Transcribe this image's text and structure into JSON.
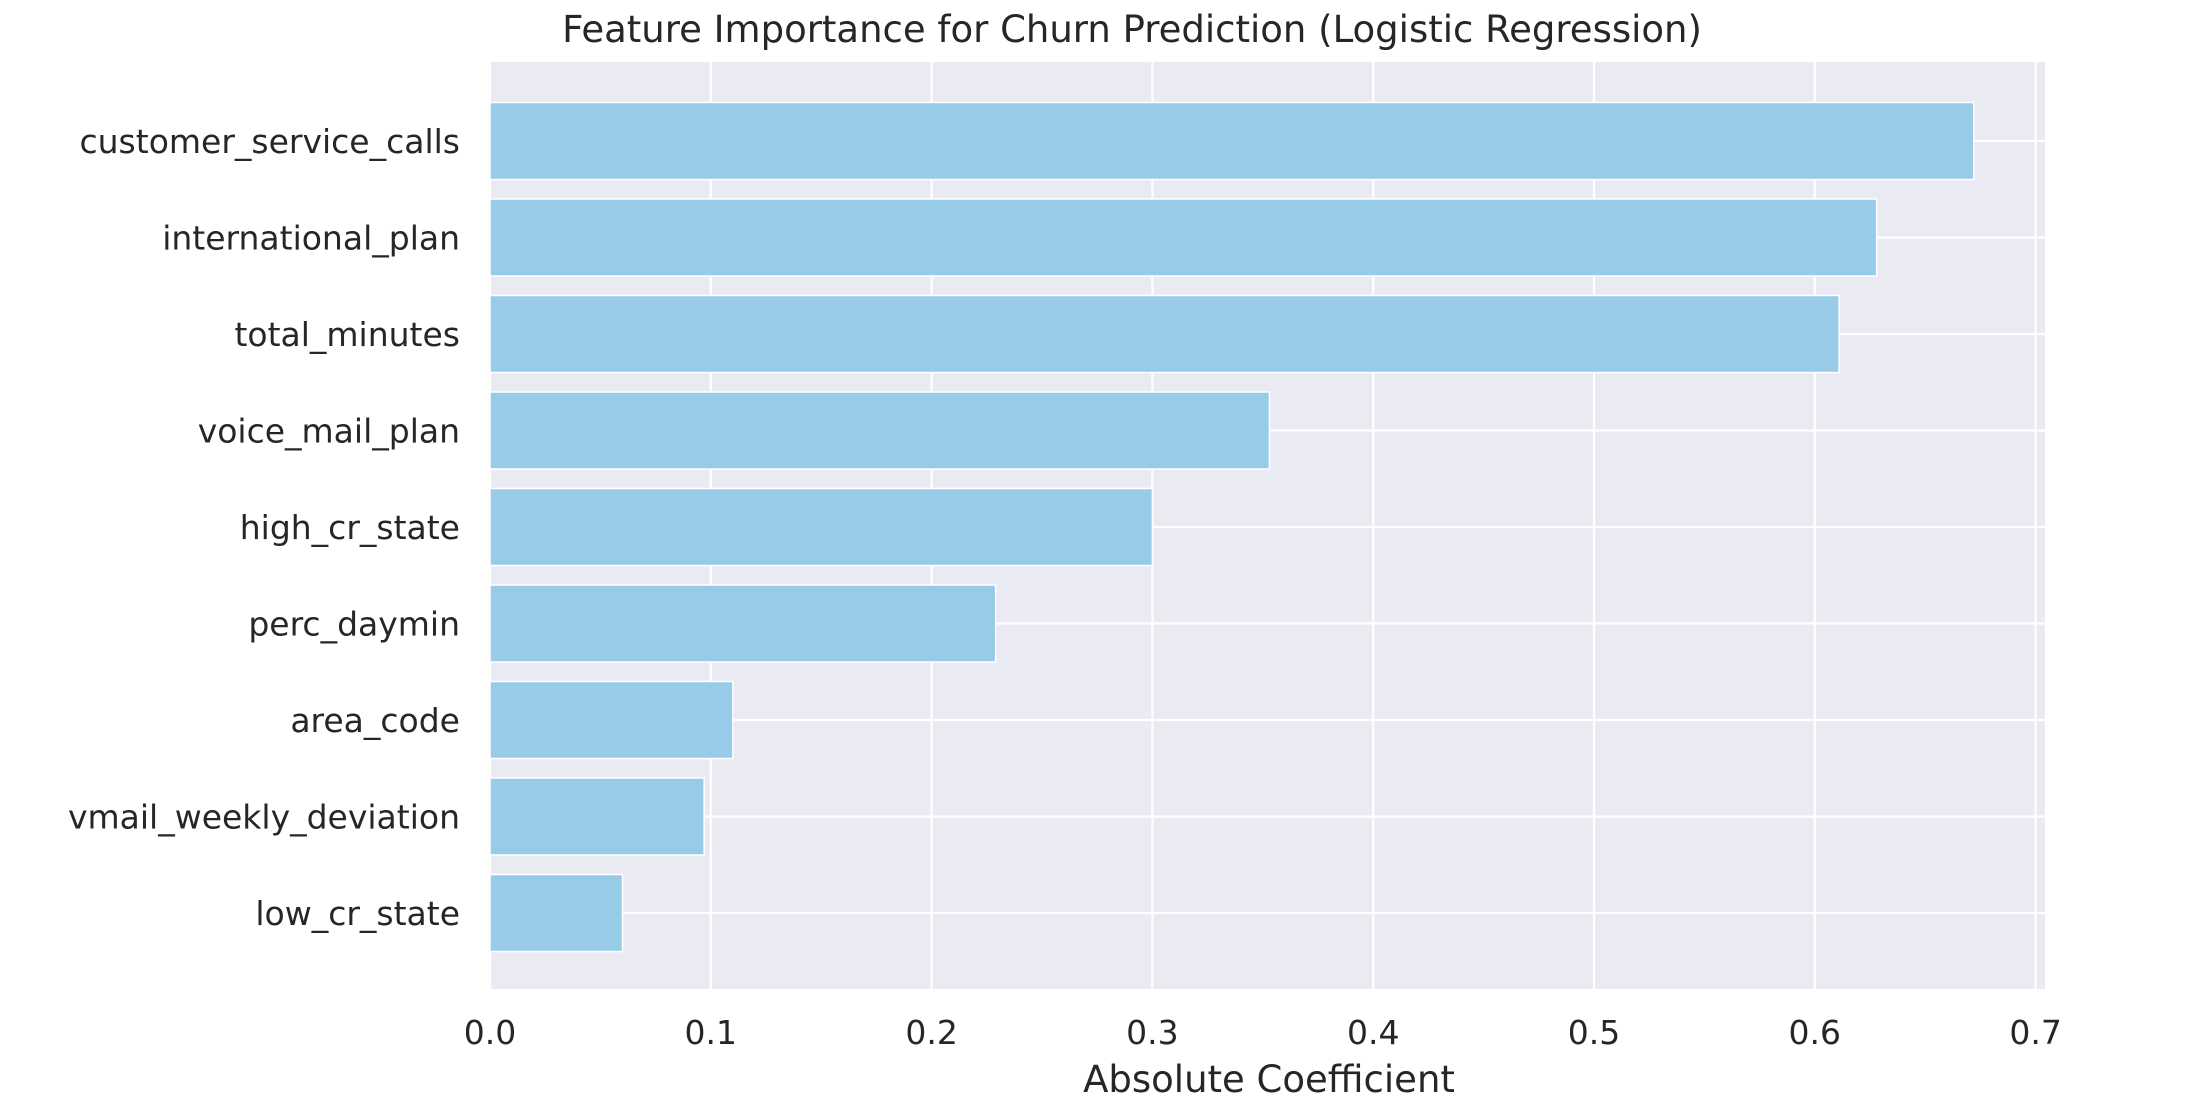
{
  "chart_data": {
    "type": "bar",
    "orientation": "horizontal",
    "title": "Feature Importance for Churn Prediction (Logistic Regression)",
    "xlabel": "Absolute Coefficient",
    "ylabel": "",
    "xlim": [
      0,
      0.704
    ],
    "xticks": [
      0.0,
      0.1,
      0.2,
      0.3,
      0.4,
      0.5,
      0.6,
      0.7
    ],
    "xtick_labels": [
      "0.0",
      "0.1",
      "0.2",
      "0.3",
      "0.4",
      "0.5",
      "0.6",
      "0.7"
    ],
    "grid": true,
    "categories": [
      "customer_service_calls",
      "international_plan",
      "total_minutes",
      "voice_mail_plan",
      "high_cr_state",
      "perc_daymin",
      "area_code",
      "vmail_weekly_deviation",
      "low_cr_state"
    ],
    "values": [
      0.672,
      0.628,
      0.611,
      0.353,
      0.3,
      0.229,
      0.11,
      0.097,
      0.06
    ],
    "colors": {
      "bar": "#97cbe8",
      "bar_edge": "#ffffff",
      "plot_background": "#eaeaf2",
      "grid": "#ffffff",
      "text": "#262626"
    }
  }
}
